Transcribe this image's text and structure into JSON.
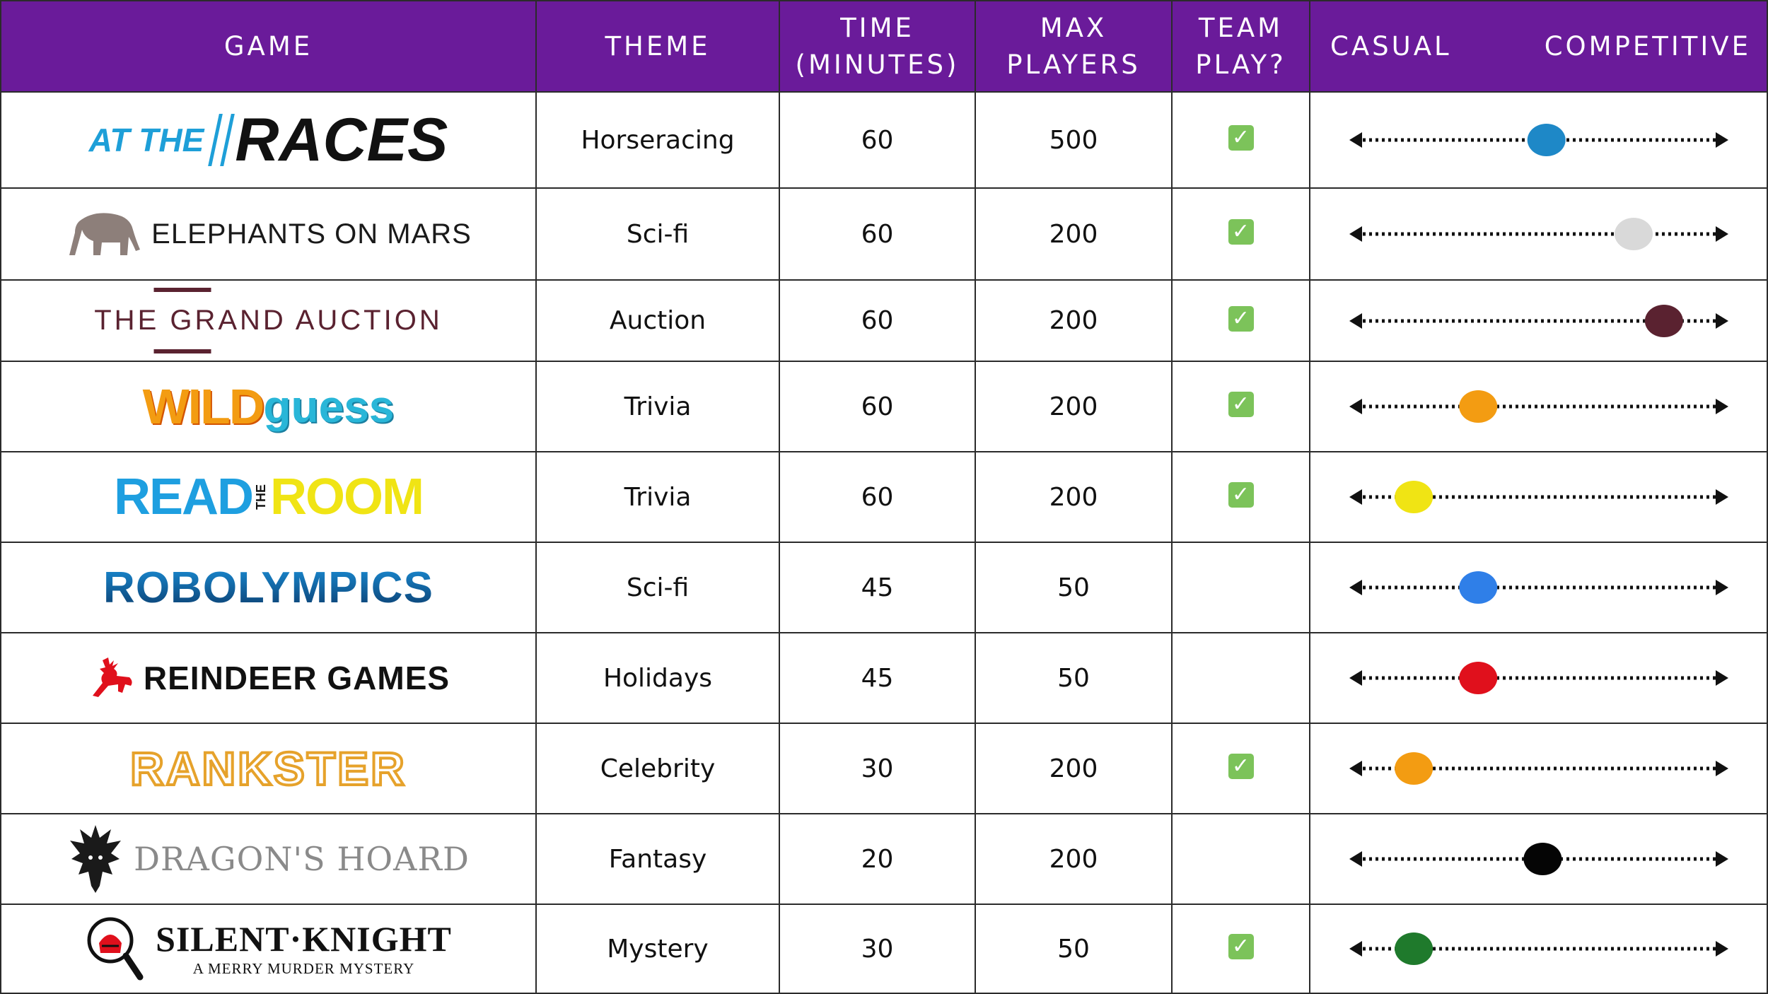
{
  "header": {
    "game": "GAME",
    "theme": "THEME",
    "time_line1": "TIME",
    "time_line2": "(MINUTES)",
    "players_line1": "MAX",
    "players_line2": "PLAYERS",
    "team_line1": "TEAM",
    "team_line2": "PLAY?",
    "casual": "CASUAL",
    "competitive": "COMPETITIVE"
  },
  "colors": {
    "header_bg": "#6a1b9a",
    "check_bg": "#7cc35a"
  },
  "rows": [
    {
      "game": "AT THE RACES",
      "theme": "Horseracing",
      "time": "60",
      "players": "500",
      "team": true,
      "competitiveness": 0.52,
      "dot_color": "#1e88c7"
    },
    {
      "game": "ELEPHANTS ON MARS",
      "theme": "Sci-fi",
      "time": "60",
      "players": "200",
      "team": true,
      "competitiveness": 0.75,
      "dot_color": "#d9d9d9"
    },
    {
      "game": "THE GRAND AUCTION",
      "theme": "Auction",
      "time": "60",
      "players": "200",
      "team": true,
      "competitiveness": 0.83,
      "dot_color": "#5a2230"
    },
    {
      "game": "WILDguess",
      "theme": "Trivia",
      "time": "60",
      "players": "200",
      "team": true,
      "competitiveness": 0.34,
      "dot_color": "#f39c12"
    },
    {
      "game": "READ THE ROOM",
      "theme": "Trivia",
      "time": "60",
      "players": "200",
      "team": true,
      "competitiveness": 0.17,
      "dot_color": "#f0e414"
    },
    {
      "game": "ROBOLYMPICS",
      "theme": "Sci-fi",
      "time": "45",
      "players": "50",
      "team": false,
      "competitiveness": 0.34,
      "dot_color": "#2f7fe8"
    },
    {
      "game": "REINDEER GAMES",
      "theme": "Holidays",
      "time": "45",
      "players": "50",
      "team": false,
      "competitiveness": 0.34,
      "dot_color": "#e0101c"
    },
    {
      "game": "RANKSTER",
      "theme": "Celebrity",
      "time": "30",
      "players": "200",
      "team": true,
      "competitiveness": 0.17,
      "dot_color": "#f39c12"
    },
    {
      "game": "DRAGON'S HOARD",
      "theme": "Fantasy",
      "time": "20",
      "players": "200",
      "team": false,
      "competitiveness": 0.51,
      "dot_color": "#050505"
    },
    {
      "game": "SILENT·KNIGHT",
      "game_sub": "A MERRY MURDER MYSTERY",
      "theme": "Mystery",
      "time": "30",
      "players": "50",
      "team": true,
      "competitiveness": 0.17,
      "dot_color": "#1f7a2c"
    }
  ],
  "check_symbol": "✓"
}
